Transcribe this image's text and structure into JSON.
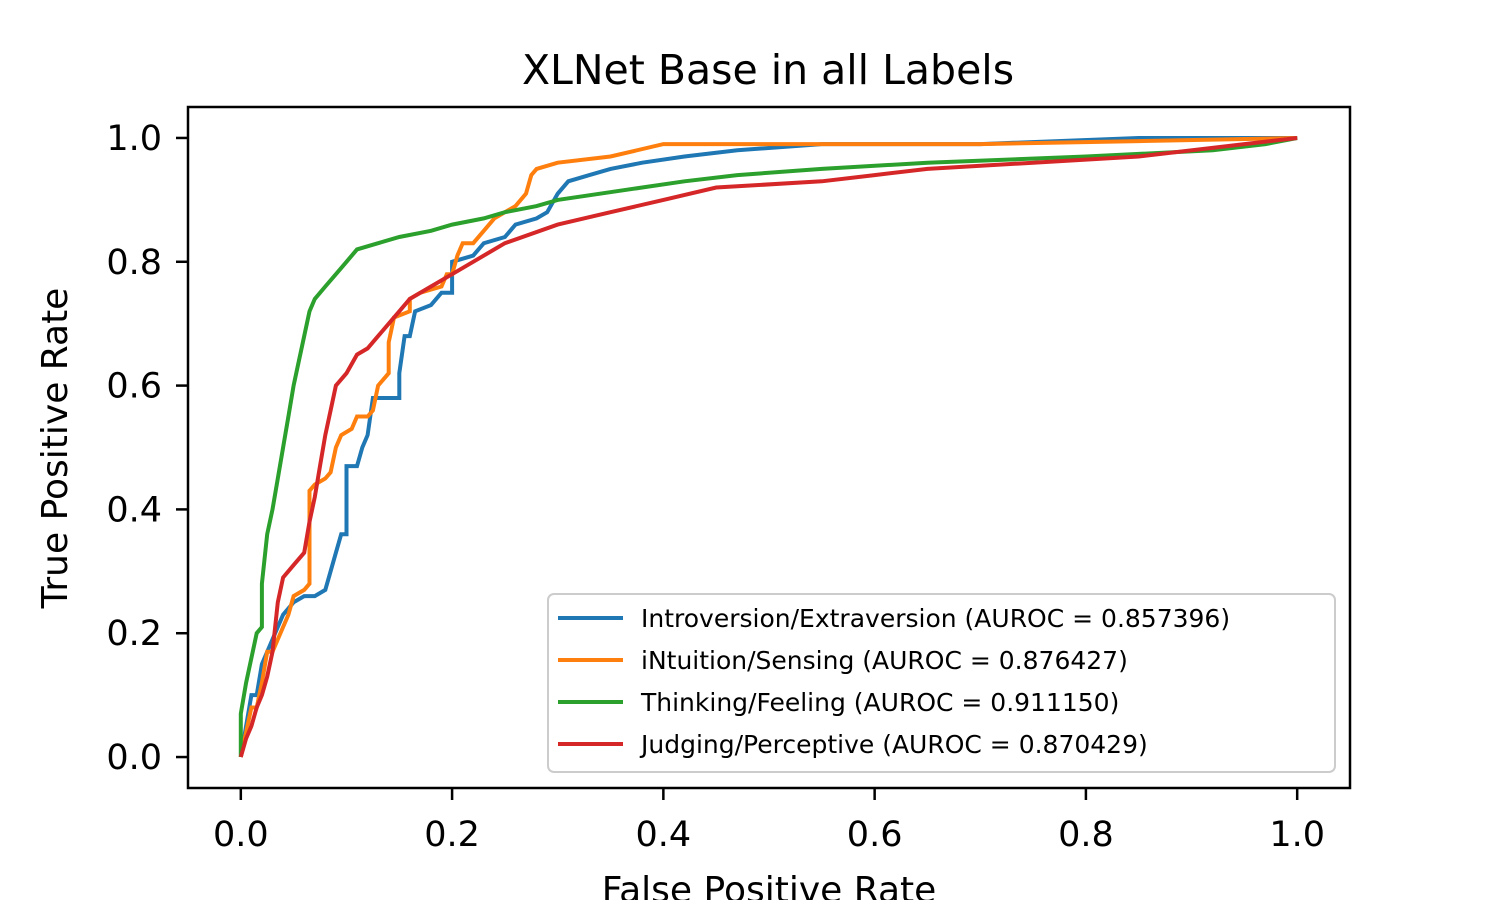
{
  "chart_data": {
    "type": "line",
    "title": "XLNet Base in all Labels",
    "xlabel": "False Positive Rate",
    "ylabel": "True Positive Rate",
    "xlim": [
      -0.05,
      1.05
    ],
    "ylim": [
      -0.05,
      1.05
    ],
    "xticks": [
      0.0,
      0.2,
      0.4,
      0.6,
      0.8,
      1.0
    ],
    "yticks": [
      0.0,
      0.2,
      0.4,
      0.6,
      0.8,
      1.0
    ],
    "xtick_labels": [
      "0.0",
      "0.2",
      "0.4",
      "0.6",
      "0.8",
      "1.0"
    ],
    "ytick_labels": [
      "0.0",
      "0.2",
      "0.4",
      "0.6",
      "0.8",
      "1.0"
    ],
    "grid": false,
    "legend_position": "lower-right",
    "series": [
      {
        "name": "Introversion/Extraversion (AUROC = 0.857396)",
        "color": "#1f77b4",
        "points": [
          [
            0.0,
            0.0
          ],
          [
            0.005,
            0.05
          ],
          [
            0.01,
            0.1
          ],
          [
            0.015,
            0.1
          ],
          [
            0.02,
            0.15
          ],
          [
            0.025,
            0.17
          ],
          [
            0.03,
            0.19
          ],
          [
            0.035,
            0.21
          ],
          [
            0.04,
            0.23
          ],
          [
            0.05,
            0.25
          ],
          [
            0.06,
            0.26
          ],
          [
            0.07,
            0.26
          ],
          [
            0.08,
            0.27
          ],
          [
            0.085,
            0.3
          ],
          [
            0.09,
            0.33
          ],
          [
            0.095,
            0.36
          ],
          [
            0.1,
            0.36
          ],
          [
            0.1,
            0.47
          ],
          [
            0.11,
            0.47
          ],
          [
            0.115,
            0.5
          ],
          [
            0.12,
            0.52
          ],
          [
            0.125,
            0.58
          ],
          [
            0.15,
            0.58
          ],
          [
            0.15,
            0.62
          ],
          [
            0.155,
            0.68
          ],
          [
            0.16,
            0.68
          ],
          [
            0.165,
            0.72
          ],
          [
            0.18,
            0.73
          ],
          [
            0.19,
            0.75
          ],
          [
            0.2,
            0.75
          ],
          [
            0.2,
            0.8
          ],
          [
            0.22,
            0.81
          ],
          [
            0.23,
            0.83
          ],
          [
            0.25,
            0.84
          ],
          [
            0.26,
            0.86
          ],
          [
            0.28,
            0.87
          ],
          [
            0.29,
            0.88
          ],
          [
            0.3,
            0.91
          ],
          [
            0.31,
            0.93
          ],
          [
            0.33,
            0.94
          ],
          [
            0.35,
            0.95
          ],
          [
            0.38,
            0.96
          ],
          [
            0.42,
            0.97
          ],
          [
            0.47,
            0.98
          ],
          [
            0.55,
            0.99
          ],
          [
            0.7,
            0.99
          ],
          [
            0.85,
            1.0
          ],
          [
            1.0,
            1.0
          ]
        ]
      },
      {
        "name": "iNtuition/Sensing (AUROC = 0.876427)",
        "color": "#ff7f0e",
        "points": [
          [
            0.0,
            0.0
          ],
          [
            0.005,
            0.04
          ],
          [
            0.01,
            0.08
          ],
          [
            0.015,
            0.08
          ],
          [
            0.02,
            0.12
          ],
          [
            0.025,
            0.17
          ],
          [
            0.03,
            0.17
          ],
          [
            0.035,
            0.19
          ],
          [
            0.04,
            0.21
          ],
          [
            0.045,
            0.23
          ],
          [
            0.05,
            0.26
          ],
          [
            0.06,
            0.27
          ],
          [
            0.065,
            0.28
          ],
          [
            0.065,
            0.43
          ],
          [
            0.07,
            0.44
          ],
          [
            0.08,
            0.45
          ],
          [
            0.085,
            0.46
          ],
          [
            0.09,
            0.5
          ],
          [
            0.095,
            0.52
          ],
          [
            0.105,
            0.53
          ],
          [
            0.11,
            0.55
          ],
          [
            0.12,
            0.55
          ],
          [
            0.125,
            0.56
          ],
          [
            0.13,
            0.6
          ],
          [
            0.14,
            0.62
          ],
          [
            0.14,
            0.67
          ],
          [
            0.145,
            0.71
          ],
          [
            0.16,
            0.72
          ],
          [
            0.16,
            0.74
          ],
          [
            0.17,
            0.75
          ],
          [
            0.19,
            0.76
          ],
          [
            0.195,
            0.78
          ],
          [
            0.2,
            0.78
          ],
          [
            0.205,
            0.81
          ],
          [
            0.21,
            0.83
          ],
          [
            0.22,
            0.83
          ],
          [
            0.23,
            0.85
          ],
          [
            0.24,
            0.87
          ],
          [
            0.26,
            0.89
          ],
          [
            0.27,
            0.91
          ],
          [
            0.275,
            0.94
          ],
          [
            0.28,
            0.95
          ],
          [
            0.3,
            0.96
          ],
          [
            0.35,
            0.97
          ],
          [
            0.4,
            0.99
          ],
          [
            0.5,
            0.99
          ],
          [
            0.7,
            0.99
          ],
          [
            0.85,
            0.995
          ],
          [
            1.0,
            1.0
          ]
        ]
      },
      {
        "name": "Thinking/Feeling (AUROC = 0.911150)",
        "color": "#2ca02c",
        "points": [
          [
            0.0,
            0.0
          ],
          [
            0.0,
            0.07
          ],
          [
            0.005,
            0.12
          ],
          [
            0.01,
            0.16
          ],
          [
            0.015,
            0.2
          ],
          [
            0.02,
            0.21
          ],
          [
            0.02,
            0.28
          ],
          [
            0.025,
            0.36
          ],
          [
            0.03,
            0.4
          ],
          [
            0.035,
            0.45
          ],
          [
            0.04,
            0.5
          ],
          [
            0.045,
            0.55
          ],
          [
            0.05,
            0.6
          ],
          [
            0.055,
            0.64
          ],
          [
            0.06,
            0.68
          ],
          [
            0.065,
            0.72
          ],
          [
            0.07,
            0.74
          ],
          [
            0.08,
            0.76
          ],
          [
            0.09,
            0.78
          ],
          [
            0.1,
            0.8
          ],
          [
            0.11,
            0.82
          ],
          [
            0.13,
            0.83
          ],
          [
            0.15,
            0.84
          ],
          [
            0.18,
            0.85
          ],
          [
            0.2,
            0.86
          ],
          [
            0.23,
            0.87
          ],
          [
            0.25,
            0.88
          ],
          [
            0.28,
            0.89
          ],
          [
            0.3,
            0.9
          ],
          [
            0.34,
            0.91
          ],
          [
            0.38,
            0.92
          ],
          [
            0.42,
            0.93
          ],
          [
            0.47,
            0.94
          ],
          [
            0.55,
            0.95
          ],
          [
            0.65,
            0.96
          ],
          [
            0.8,
            0.97
          ],
          [
            0.92,
            0.98
          ],
          [
            0.97,
            0.99
          ],
          [
            1.0,
            1.0
          ]
        ]
      },
      {
        "name": "Judging/Perceptive (AUROC = 0.870429)",
        "color": "#d62728",
        "points": [
          [
            0.0,
            0.0
          ],
          [
            0.005,
            0.03
          ],
          [
            0.01,
            0.05
          ],
          [
            0.015,
            0.08
          ],
          [
            0.02,
            0.1
          ],
          [
            0.025,
            0.13
          ],
          [
            0.03,
            0.17
          ],
          [
            0.035,
            0.25
          ],
          [
            0.04,
            0.29
          ],
          [
            0.05,
            0.31
          ],
          [
            0.06,
            0.33
          ],
          [
            0.065,
            0.38
          ],
          [
            0.07,
            0.42
          ],
          [
            0.075,
            0.47
          ],
          [
            0.08,
            0.52
          ],
          [
            0.085,
            0.56
          ],
          [
            0.09,
            0.6
          ],
          [
            0.1,
            0.62
          ],
          [
            0.11,
            0.65
          ],
          [
            0.12,
            0.66
          ],
          [
            0.13,
            0.68
          ],
          [
            0.14,
            0.7
          ],
          [
            0.15,
            0.72
          ],
          [
            0.16,
            0.74
          ],
          [
            0.18,
            0.76
          ],
          [
            0.2,
            0.78
          ],
          [
            0.22,
            0.8
          ],
          [
            0.25,
            0.83
          ],
          [
            0.3,
            0.86
          ],
          [
            0.35,
            0.88
          ],
          [
            0.4,
            0.9
          ],
          [
            0.45,
            0.92
          ],
          [
            0.55,
            0.93
          ],
          [
            0.6,
            0.94
          ],
          [
            0.65,
            0.95
          ],
          [
            0.75,
            0.96
          ],
          [
            0.85,
            0.97
          ],
          [
            0.95,
            0.99
          ],
          [
            1.0,
            1.0
          ]
        ]
      }
    ]
  }
}
